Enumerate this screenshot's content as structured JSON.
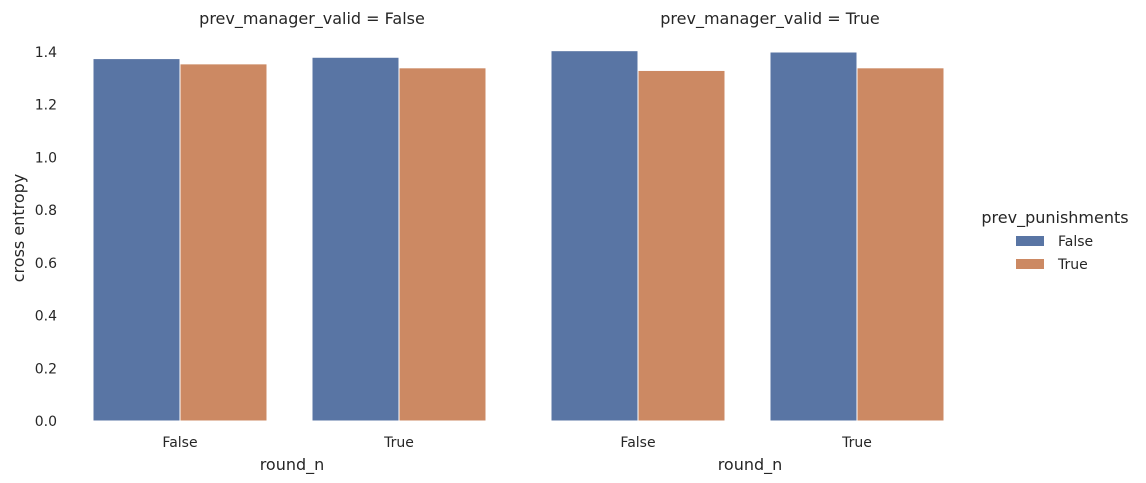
{
  "chart_data": {
    "type": "bar",
    "ylabel": "cross entropy",
    "ylim": [
      0,
      1.4
    ],
    "yticks": [
      "0.0",
      "0.2",
      "0.4",
      "0.6",
      "0.8",
      "1.0",
      "1.2",
      "1.4"
    ],
    "legend": {
      "title": "prev_punishments",
      "placement": "right",
      "entries": [
        {
          "label": "False",
          "color": "#5975a4"
        },
        {
          "label": "True",
          "color": "#cc8963"
        }
      ]
    },
    "panels": [
      {
        "title": "prev_manager_valid = False",
        "xlabel": "round_n",
        "categories": [
          "False",
          "True"
        ],
        "series": [
          {
            "name": "False",
            "color": "#5975a4",
            "values": [
              1.375,
              1.38
            ]
          },
          {
            "name": "True",
            "color": "#cc8963",
            "values": [
              1.355,
              1.34
            ]
          }
        ]
      },
      {
        "title": "prev_manager_valid = True",
        "xlabel": "round_n",
        "categories": [
          "False",
          "True"
        ],
        "series": [
          {
            "name": "False",
            "color": "#5975a4",
            "values": [
              1.405,
              1.4
            ]
          },
          {
            "name": "True",
            "color": "#cc8963",
            "values": [
              1.33,
              1.34
            ]
          }
        ]
      }
    ]
  }
}
